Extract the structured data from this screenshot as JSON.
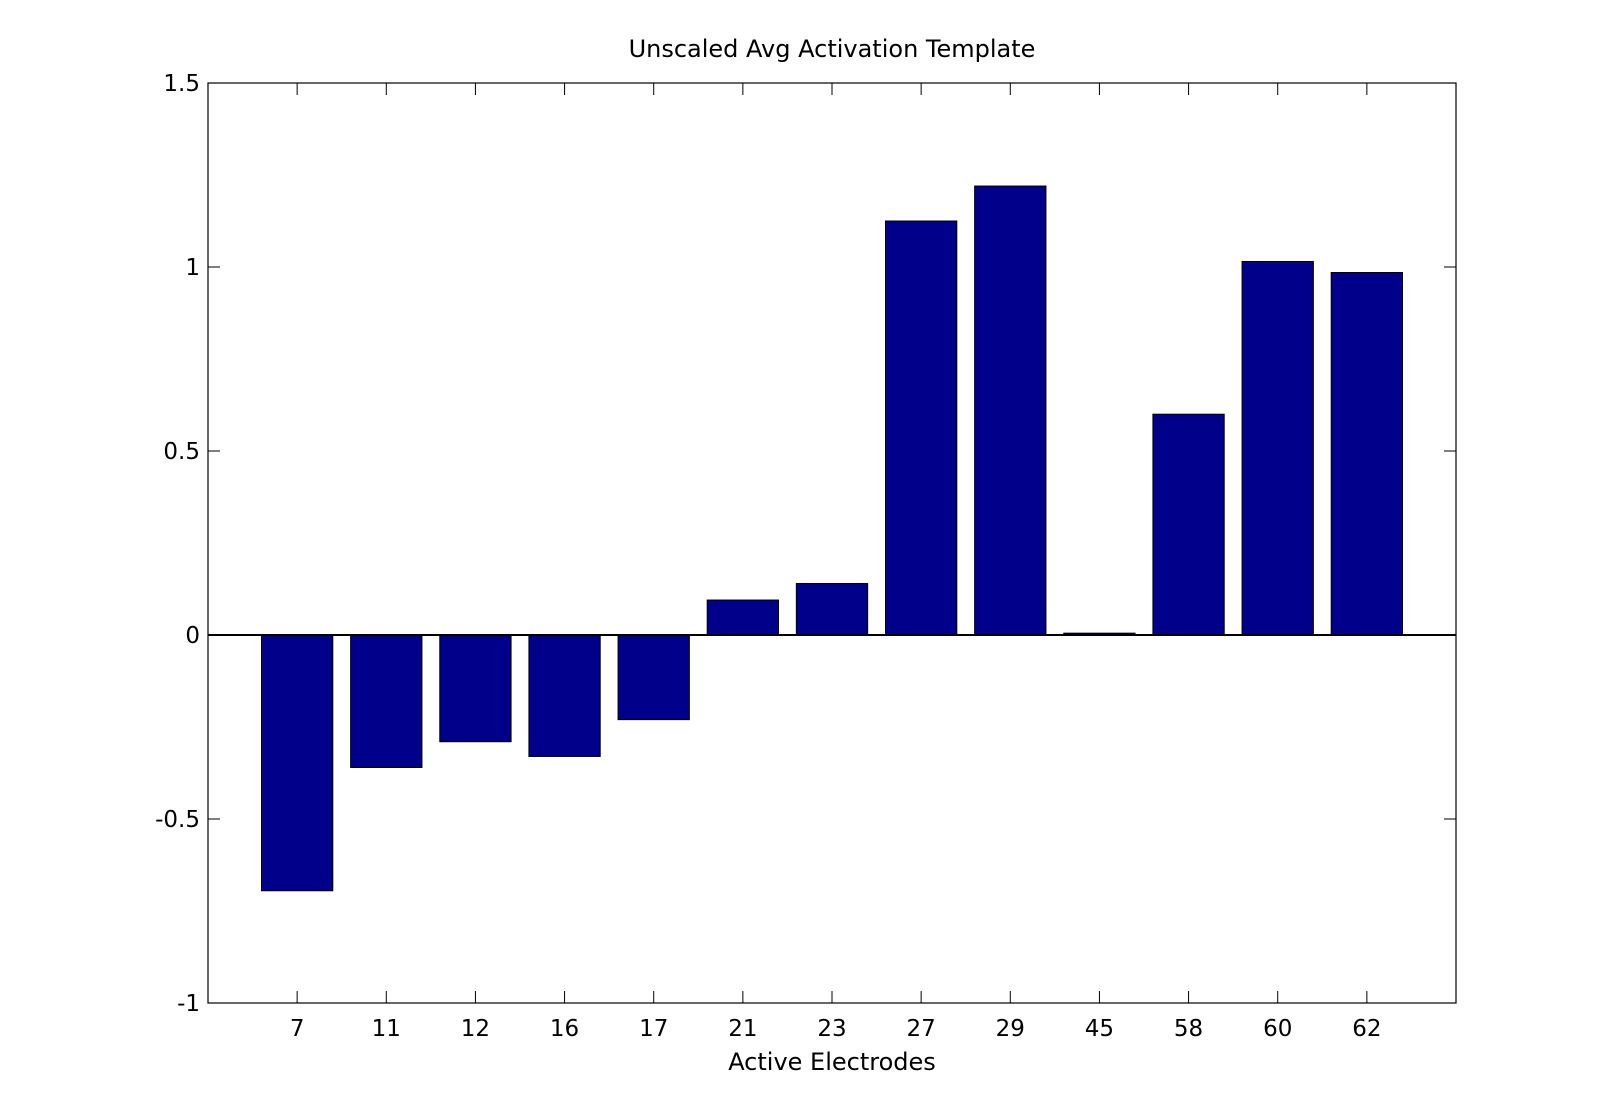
{
  "chart_data": {
    "type": "bar",
    "title": "Unscaled Avg Activation Template",
    "xlabel": "Active Electrodes",
    "ylabel": "",
    "categories": [
      "7",
      "11",
      "12",
      "16",
      "17",
      "21",
      "23",
      "27",
      "29",
      "45",
      "58",
      "60",
      "62"
    ],
    "values": [
      -0.695,
      -0.36,
      -0.29,
      -0.33,
      -0.23,
      0.095,
      0.14,
      1.125,
      1.22,
      0.005,
      0.6,
      1.015,
      0.985
    ],
    "ylim": [
      -1,
      1.5
    ],
    "yticks": [
      -1,
      -0.5,
      0,
      0.5,
      1,
      1.5
    ],
    "ytick_labels": [
      "-1",
      "-0.5",
      "0",
      "0.5",
      "1",
      "1.5"
    ],
    "grid": false,
    "legend": "none",
    "bar_color": "#00008b",
    "axis_color": "#000000",
    "background": "#ffffff"
  }
}
